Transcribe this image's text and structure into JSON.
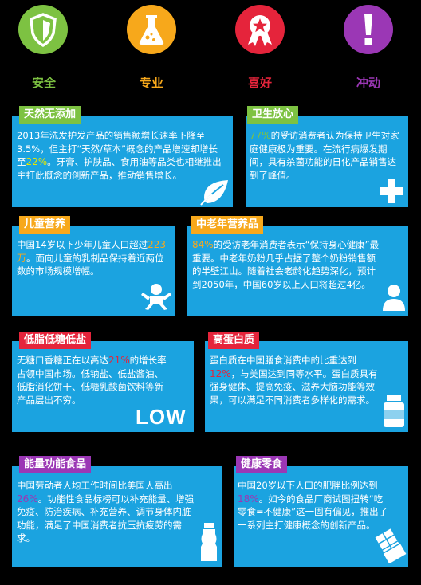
{
  "colors": {
    "green": "#7dc242",
    "orange": "#f7a81b",
    "red": "#e5243b",
    "purple": "#9b37b5",
    "blue": "#1ba3e0",
    "yellow_highlight": "#e6e600"
  },
  "categories": [
    {
      "label": "安全",
      "icon": "shield-icon",
      "color": "#7dc242"
    },
    {
      "label": "专业",
      "icon": "flask-icon",
      "color": "#f7a81b"
    },
    {
      "label": "喜好",
      "icon": "award-ribbon-icon",
      "color": "#e5243b"
    },
    {
      "label": "冲动",
      "icon": "exclamation-icon",
      "color": "#9b37b5"
    }
  ],
  "cards": {
    "natural": {
      "tag": "天然无添加",
      "text_a": "2013年洗发护发产品的销售额增长速率下降至3.5%，但主打“天然/草本”概念的产品增速却增长至",
      "highlight": "22%",
      "text_b": "。牙膏、护肤品、食用油等品类也相继推出主打此概念的创新产品，推动销售增长。",
      "icon": "leaf-icon"
    },
    "hygiene": {
      "tag": "卫生放心",
      "highlight": "77%",
      "text_b": "的受访消费者认为保持卫生对家庭健康极为重要。在流行病爆发期间，具有杀菌功能的日化产品销售达到了峰值。",
      "icon": "plus-cross-icon"
    },
    "child": {
      "tag": "儿童营养",
      "text_a": "中国14岁以下少年儿童人口超过",
      "highlight": "223万",
      "text_b": "。面向儿童的乳制品保持着近两位数的市场规模增幅。",
      "icon": "baby-icon"
    },
    "elderly": {
      "tag": "中老年营养品",
      "highlight": "84%",
      "text_b": "的受访老年消费者表示“保持身心健康”最重要。中老年奶粉几乎占据了整个奶粉销售额的半壁江山。随着社会老龄化趋势深化，预计到2050年，中国60岁以上人口将超过4亿。",
      "icon": "person-icon"
    },
    "lowfat": {
      "tag": "低脂低糖低盐",
      "text_a": "无糖口香糖正在以高达",
      "highlight": "21%",
      "text_b": "的增长率占领中国市场。低钠盐、低盐酱油、低脂消化饼干、低糖乳酸菌饮料等新产品层出不穷。",
      "icon_text": "LOW"
    },
    "protein": {
      "tag": "高蛋白质",
      "text_a": "蛋白质在中国膳食消费中的比重达到",
      "highlight": "12%",
      "text_b": "，与美国达到同等水平。蛋白质具有强身健体、提高免疫、滋养大脑功能等效果，可以满足不同消费者多样化的需求。",
      "icon": "supplement-bottle-icon"
    },
    "energy": {
      "tag": "能量功能食品",
      "text_a": "中国劳动者人均工作时间比美国人高出",
      "highlight": "26%",
      "text_b": "。功能性食品标榜可以补充能量、增强免疫、防治疾病、补充营养、调节身体内脏功能，满足了中国消费者抗压抗疲劳的需求。",
      "icon": "drink-bottle-icon"
    },
    "snack": {
      "tag": "健康零食",
      "text_a": "中国20岁以下人口的肥胖比例达到",
      "highlight": "18%",
      "text_b": "。如今的食品厂商试图扭转“吃零食=不健康”这一固有偏见，推出了一系列主打健康概念的创新产品。",
      "icon": "chocolate-bar-icon"
    }
  }
}
